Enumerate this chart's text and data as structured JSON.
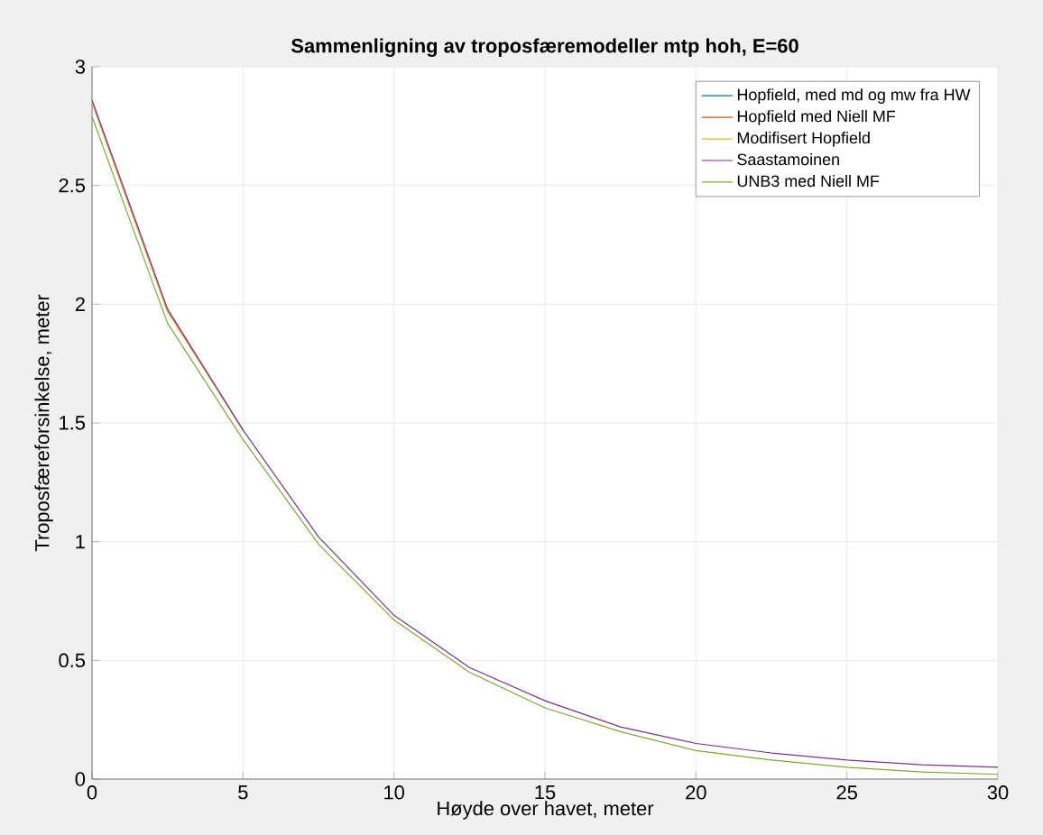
{
  "chart_data": {
    "type": "line",
    "title": "Sammenligning av troposfæremodeller mtp hoh, E=60",
    "xlabel": "Høyde over havet, meter",
    "ylabel": "Troposfæreforsinkelse, meter",
    "x": [
      0,
      2.5,
      5,
      7.5,
      10,
      12.5,
      15,
      17.5,
      20,
      22.5,
      25,
      27.5,
      30
    ],
    "series": [
      {
        "name": "Hopfield, med md og mw fra HW",
        "color": "#0072bd",
        "values": [
          null,
          null,
          null,
          null,
          null,
          null,
          null,
          null,
          null,
          null,
          null,
          null,
          null
        ]
      },
      {
        "name": "Hopfield med Niell MF",
        "color": "#d95319",
        "values": [
          2.85,
          1.97,
          1.47,
          null,
          null,
          null,
          null,
          null,
          null,
          null,
          null,
          null,
          null
        ]
      },
      {
        "name": "Modifisert Hopfield",
        "color": "#edb120",
        "values": [
          2.85,
          1.97,
          1.47,
          null,
          null,
          null,
          null,
          null,
          null,
          null,
          null,
          null,
          null
        ]
      },
      {
        "name": "Saastamoinen",
        "color": "#7e2f8e",
        "values": [
          2.86,
          1.98,
          1.47,
          1.02,
          0.69,
          0.47,
          0.33,
          0.22,
          0.15,
          0.11,
          0.08,
          0.06,
          0.05
        ]
      },
      {
        "name": "UNB3 med Niell MF",
        "color": "#77ac30",
        "values": [
          2.79,
          1.92,
          1.43,
          0.99,
          0.67,
          0.45,
          0.3,
          0.2,
          0.12,
          0.08,
          0.05,
          0.03,
          0.02
        ]
      }
    ],
    "xlim": [
      0,
      30
    ],
    "ylim": [
      0,
      3
    ],
    "xticks": [
      0,
      5,
      10,
      15,
      20,
      25,
      30
    ],
    "yticks": [
      0,
      0.5,
      1,
      1.5,
      2,
      2.5,
      3
    ],
    "grid": true,
    "legend": "top right"
  }
}
